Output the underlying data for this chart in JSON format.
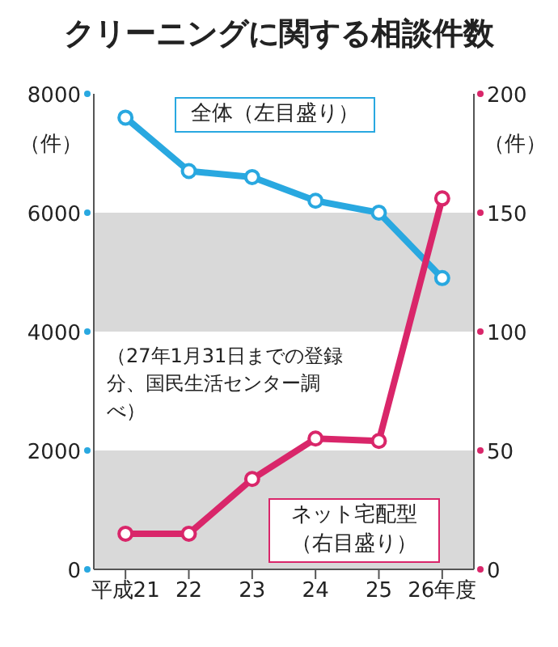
{
  "chart_data": {
    "type": "line",
    "title": "クリーニングに関する相談件数",
    "categories": [
      "平成21",
      "22",
      "23",
      "24",
      "25",
      "26年度"
    ],
    "series": [
      {
        "name": "全体（左目盛り）",
        "color": "#29a8e0",
        "values": [
          7600,
          6700,
          6600,
          6200,
          6000,
          4900
        ]
      },
      {
        "name": "ネット宅配型（右目盛り）",
        "color": "#d9266a",
        "axis": "y2",
        "values": [
          15,
          15,
          38,
          55,
          54,
          156
        ]
      }
    ],
    "ylabel": "（件）",
    "y2label": "（件）",
    "ylim": [
      0,
      8000
    ],
    "yticks": [
      0,
      2000,
      4000,
      6000,
      8000
    ],
    "y2lim": [
      0,
      200
    ],
    "y2ticks": [
      0,
      50,
      100,
      150,
      200
    ],
    "bands": [
      {
        "axis": "y",
        "from": 4000,
        "to": 6000,
        "color": "#d9d9d9"
      },
      {
        "axis": "y",
        "from": 0,
        "to": 2000,
        "color": "#d9d9d9"
      }
    ],
    "annotations": [
      "（27年1月31日までの登録分、国民生活センター調べ）"
    ],
    "marker": "circle",
    "line_style": "solid",
    "grid": false,
    "legend": false
  }
}
